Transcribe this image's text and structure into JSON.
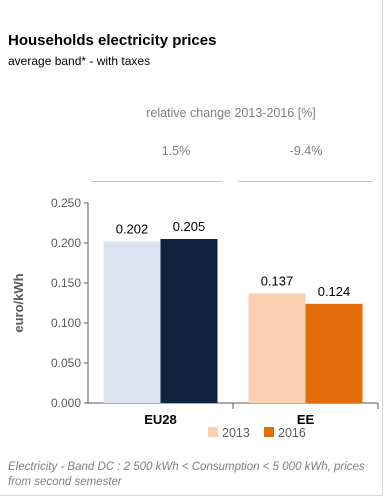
{
  "title": "Households electricity prices",
  "subtitle": "average band* - with taxes",
  "relative_change": {
    "heading": "relative change 2013-2016 [%]",
    "values": [
      "1.5%",
      "-9.4%"
    ]
  },
  "footnote": "Electricity - Band DC : 2 500 kWh < Consumption < 5 000 kWh, prices from second semester",
  "colors": {
    "eu28_2013": "#dbe4f0",
    "eu28_2016": "#0f2340",
    "ee_2013": "#fbcfb0",
    "ee_2016": "#e36c0a",
    "legend_2013": "#fbcfb0",
    "legend_2016": "#e36c0a"
  },
  "chart_data": {
    "type": "bar",
    "categories": [
      "EU28",
      "EE"
    ],
    "series": [
      {
        "name": "2013",
        "values": [
          0.202,
          0.137
        ]
      },
      {
        "name": "2016",
        "values": [
          0.205,
          0.124
        ]
      }
    ],
    "data_labels": [
      [
        "0.202",
        "0.205"
      ],
      [
        "0.137",
        "0.124"
      ]
    ],
    "ylabel": "euro/kWh",
    "ylim": [
      0,
      0.25
    ],
    "yticks": [
      "0.000",
      "0.050",
      "0.100",
      "0.150",
      "0.200",
      "0.250"
    ],
    "grid": false,
    "legend": [
      "2013",
      "2016"
    ],
    "legend_position": "bottom"
  }
}
